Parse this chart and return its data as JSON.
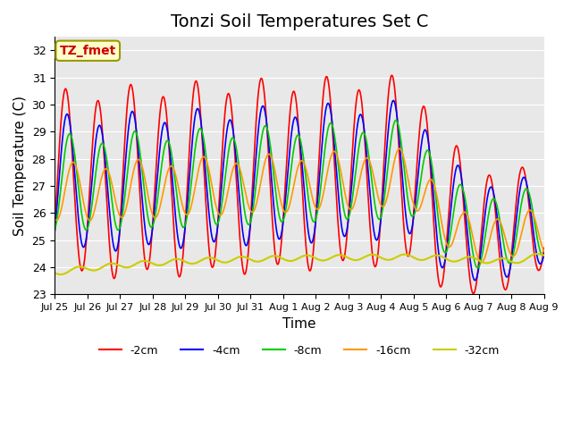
{
  "title": "Tonzi Soil Temperatures Set C",
  "xlabel": "Time",
  "ylabel": "Soil Temperature (C)",
  "ylim": [
    23.0,
    32.5
  ],
  "yticks": [
    23.0,
    24.0,
    25.0,
    26.0,
    27.0,
    28.0,
    29.0,
    30.0,
    31.0,
    32.0
  ],
  "xtick_labels": [
    "Jul 25",
    "Jul 26",
    "Jul 27",
    "Jul 28",
    "Jul 29",
    "Jul 30",
    "Jul 31",
    "Aug 1",
    "Aug 2",
    "Aug 3",
    "Aug 4",
    "Aug 5",
    "Aug 6",
    "Aug 7",
    "Aug 8",
    "Aug 9"
  ],
  "annotation_text": "TZ_fmet",
  "annotation_color": "#cc0000",
  "annotation_bg": "#ffffcc",
  "annotation_border": "#999900",
  "line_colors": [
    "#ff0000",
    "#0000ff",
    "#00cc00",
    "#ff9900",
    "#cccc00"
  ],
  "line_labels": [
    "-2cm",
    "-4cm",
    "-8cm",
    "-16cm",
    "-32cm"
  ],
  "title_fontsize": 14,
  "axis_label_fontsize": 11
}
